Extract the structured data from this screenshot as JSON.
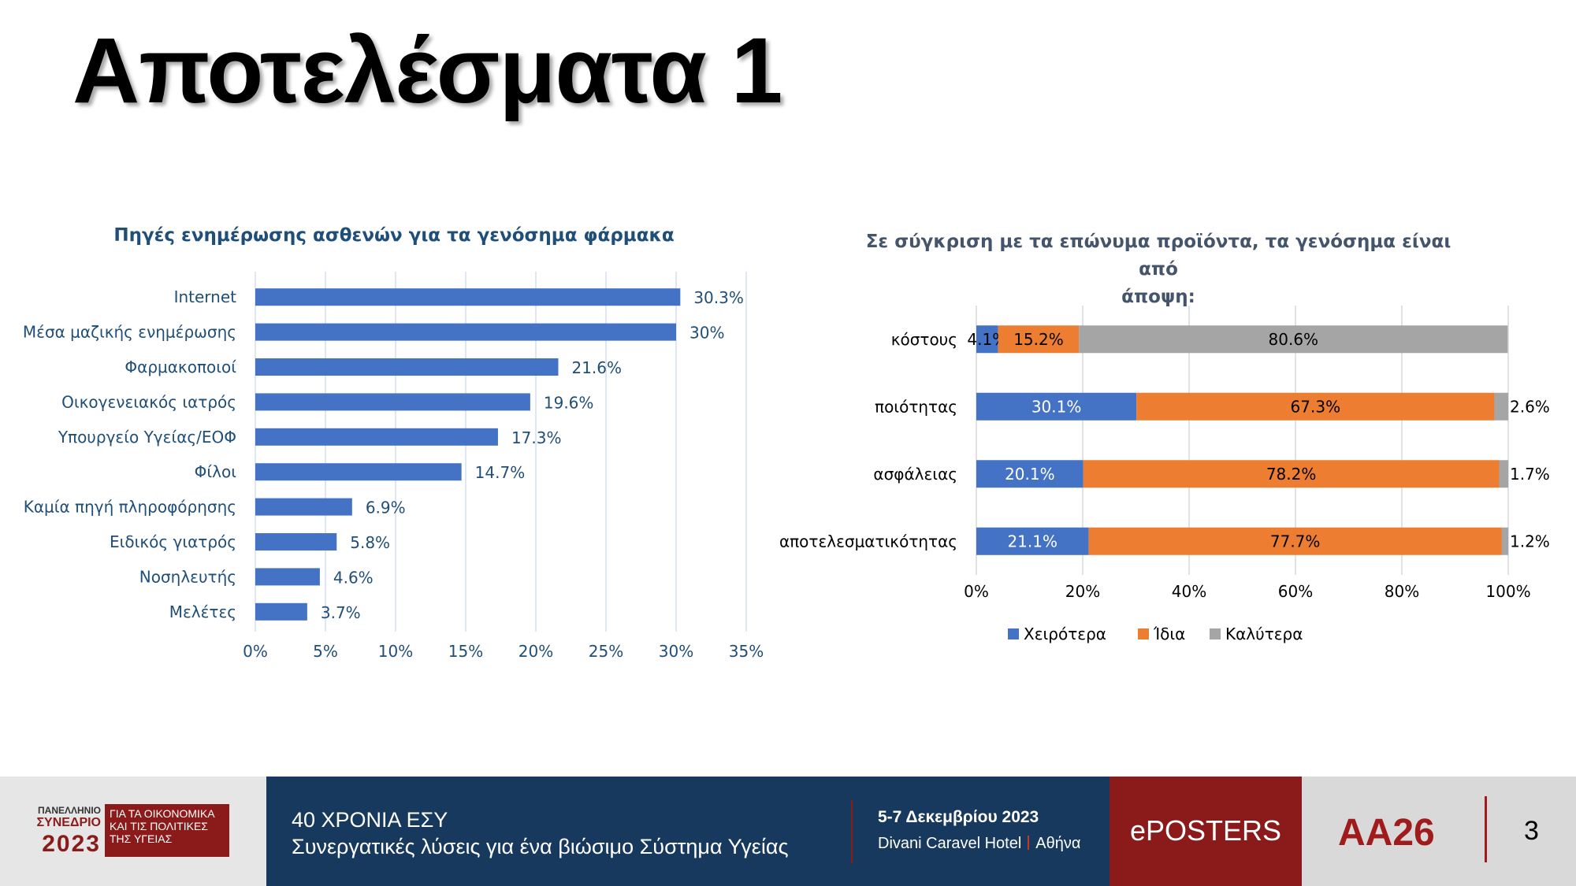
{
  "slide": {
    "title": "Αποτελέσματα 1"
  },
  "chart_data": [
    {
      "type": "bar",
      "orientation": "horizontal",
      "title": "Πηγές ενημέρωσης ασθενών για τα γενόσημα φάρμακα",
      "categories": [
        "Internet",
        "Μέσα μαζικής ενημέρωσης",
        "Φαρμακοποιοί",
        "Οικογενειακός ιατρός",
        "Υπουργείο Υγείας/ΕΟΦ",
        "Φίλοι",
        "Καμία πηγή πληροφόρησης",
        "Ειδικός γιατρός",
        "Νοσηλευτής",
        "Μελέτες"
      ],
      "values": [
        30.3,
        30,
        21.6,
        19.6,
        17.3,
        14.7,
        6.9,
        5.8,
        4.6,
        3.7
      ],
      "data_labels": [
        "30.3%",
        "30%",
        "21.6%",
        "19.6%",
        "17.3%",
        "14.7%",
        "6.9%",
        "5.8%",
        "4.6%",
        "3.7%"
      ],
      "xlim": [
        0,
        35
      ],
      "x_ticks": [
        "0%",
        "5%",
        "10%",
        "15%",
        "20%",
        "25%",
        "30%",
        "35%"
      ],
      "grid": "vertical",
      "color": "#4472c4"
    },
    {
      "type": "bar",
      "orientation": "horizontal",
      "stacked": "100%",
      "title": "Σε σύγκριση με τα επώνυμα προϊόντα, τα γενόσημα είναι από άποψη:",
      "title_lines": [
        "Σε σύγκριση με τα επώνυμα προϊόντα, τα γενόσημα είναι από",
        "άποψη:"
      ],
      "categories": [
        "κόστους",
        "ποιότητας",
        "ασφάλειας",
        "αποτελεσματικότητας"
      ],
      "series": [
        {
          "name": "Χειρότερα",
          "values": [
            4.1,
            30.1,
            20.1,
            21.1
          ],
          "labels": [
            "4.1%",
            "30.1%",
            "20.1%",
            "21.1%"
          ],
          "color": "#4472c4"
        },
        {
          "name": "Ίδια",
          "values": [
            15.2,
            67.3,
            78.2,
            77.7
          ],
          "labels": [
            "15.2%",
            "67.3%",
            "78.2%",
            "77.7%"
          ],
          "color": "#ed7d31"
        },
        {
          "name": "Καλύτερα",
          "values": [
            80.6,
            2.6,
            1.7,
            1.2
          ],
          "labels": [
            "80.6%",
            "2.6%",
            "1.7%",
            "1.2%"
          ],
          "color": "#a5a5a5"
        }
      ],
      "xlim": [
        0,
        100
      ],
      "x_ticks": [
        "0%",
        "20%",
        "40%",
        "60%",
        "80%",
        "100%"
      ],
      "grid": "vertical",
      "legend": "bottom"
    }
  ],
  "footer": {
    "logo_line1": "ΠΑΝΕΛΛΗΝΙΟ",
    "logo_line2": "ΣΥΝΕΔΡΙΟ",
    "logo_year": "2023",
    "logo_box": [
      "ΓΙΑ ΤΑ ΟΙΚΟΝΟΜΙΚΑ",
      "ΚΑΙ ΤΙΣ ΠΟΛΙΤΙΚΕΣ",
      "ΤΗΣ ΥΓΕΙΑΣ"
    ],
    "line1": "40 ΧΡΟΝΙΑ ΕΣΥ",
    "line2": "Συνεργατικές λύσεις για ένα βιώσιμο Σύστημα Υγείας",
    "date": "5-7 Δεκεμβρίου 2023",
    "venue_name": "Divani Caravel Hotel",
    "venue_city": "Αθήνα",
    "eposters": "ePOSTERS",
    "code": "AA26",
    "page": "3"
  }
}
